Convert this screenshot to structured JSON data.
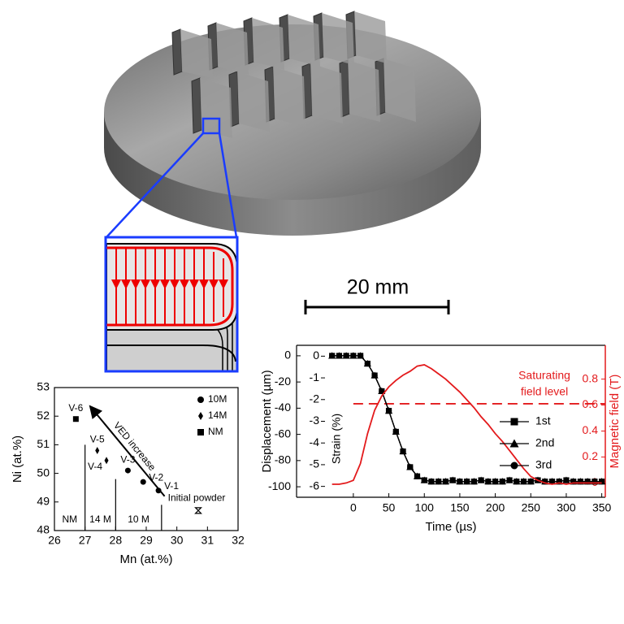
{
  "scale_bar": {
    "label": "20 mm"
  },
  "chart_data": [
    {
      "type": "scatter",
      "xlabel": "Mn (at.%)",
      "ylabel": "Ni (at.%)",
      "xlim": [
        26,
        32
      ],
      "ylim": [
        48,
        53
      ],
      "xticks": [
        26,
        27,
        28,
        29,
        30,
        31,
        32
      ],
      "yticks": [
        48,
        49,
        50,
        51,
        52,
        53
      ],
      "legend_position": "upper right",
      "series": [
        {
          "name": "10M",
          "marker": "circle",
          "color": "#000000",
          "x": [
            28.4,
            28.9,
            29.4
          ],
          "values": [
            50.1,
            49.7,
            49.4
          ],
          "xerr": [
            0.2,
            0.15,
            0.15
          ],
          "yerr": [
            0.1,
            0.1,
            0.1
          ],
          "point_labels": [
            "V-3",
            "V-2",
            "V-1"
          ],
          "label_side": [
            "above",
            "right",
            "right"
          ]
        },
        {
          "name": "14M",
          "marker": "diamond",
          "color": "#000000",
          "x": [
            27.4,
            27.7
          ],
          "values": [
            50.8,
            50.45
          ],
          "xerr": [
            0.2,
            0.2
          ],
          "yerr": [
            0.12,
            0.12
          ],
          "point_labels": [
            "V-5",
            "V-4"
          ],
          "label_side": [
            "above",
            "below-left"
          ]
        },
        {
          "name": "NM",
          "marker": "square",
          "color": "#000000",
          "x": [
            26.7
          ],
          "values": [
            51.9
          ],
          "xerr": [
            0.3
          ],
          "yerr": [
            0.15
          ],
          "point_labels": [
            "V-6"
          ],
          "label_side": [
            "above"
          ]
        }
      ],
      "reference_point": {
        "label": "Initial powder",
        "marker": "hourglass",
        "x": 30.7,
        "value": 48.7,
        "xerr": 0.35,
        "yerr": 0.08
      },
      "boundaries": [
        {
          "x": 27,
          "top": 51
        },
        {
          "x": 28,
          "top": 49.8
        },
        {
          "x": 29.5,
          "top": 48.9
        }
      ],
      "region_labels": [
        "NM",
        "14 M",
        "10 M"
      ],
      "arrow": {
        "label": "VED increase",
        "from": [
          29.6,
          49.2
        ],
        "to": [
          27.2,
          52.3
        ]
      }
    },
    {
      "type": "line",
      "xlabel": "Time (µs)",
      "ylabel": "Displacement (µm)",
      "y2label": "Magnetic field (T)",
      "y3label": "Strain (%)",
      "xlim": [
        -80,
        355
      ],
      "ylim": [
        -108,
        8
      ],
      "y2lim": [
        -0.11,
        1.06
      ],
      "y3lim": [
        -6.5,
        0.5
      ],
      "xticks": [
        0,
        50,
        100,
        150,
        200,
        250,
        300,
        350
      ],
      "yticks": [
        0,
        -20,
        -40,
        -60,
        -80,
        -100
      ],
      "y2ticks": [
        0,
        0.2,
        0.4,
        0.6,
        0.8
      ],
      "y3ticks": [
        0,
        -1,
        -2,
        -3,
        -4,
        -5,
        -6
      ],
      "y2color": "#e31a1c",
      "legend_position": "center right",
      "x": [
        -30,
        -20,
        -10,
        0,
        10,
        20,
        30,
        40,
        50,
        60,
        70,
        80,
        90,
        100,
        110,
        120,
        130,
        140,
        150,
        160,
        170,
        180,
        190,
        200,
        210,
        220,
        230,
        240,
        250,
        260,
        270,
        280,
        290,
        300,
        310,
        320,
        330,
        340,
        350
      ],
      "series": [
        {
          "name": "1st",
          "marker": "square",
          "color": "#000000",
          "values": [
            0,
            0,
            0,
            0,
            0,
            -6,
            -15,
            -27,
            -42,
            -58,
            -73,
            -85,
            -92,
            -95,
            -96,
            -96,
            -96,
            -95,
            -96,
            -96,
            -96,
            -95,
            -96,
            -96,
            -96,
            -95,
            -96,
            -96,
            -96,
            -95,
            -96,
            -96,
            -96,
            -95,
            -96,
            -96,
            -96,
            -96,
            -96
          ]
        },
        {
          "name": "2nd",
          "marker": "triangle",
          "color": "#000000",
          "values": [
            0,
            0,
            0,
            0,
            0,
            -6,
            -15,
            -27,
            -42,
            -58,
            -73,
            -85,
            -92,
            -95,
            -96,
            -96,
            -96,
            -95,
            -96,
            -96,
            -96,
            -95,
            -96,
            -96,
            -96,
            -95,
            -96,
            -96,
            -96,
            -95,
            -96,
            -96,
            -96,
            -95,
            -96,
            -96,
            -96,
            -96,
            -96
          ]
        },
        {
          "name": "3rd",
          "marker": "circle",
          "color": "#000000",
          "values": [
            0,
            0,
            0,
            0,
            0,
            -6,
            -15,
            -27,
            -42,
            -58,
            -73,
            -85,
            -92,
            -95,
            -96,
            -96,
            -96,
            -95,
            -96,
            -96,
            -96,
            -95,
            -96,
            -96,
            -96,
            -95,
            -96,
            -96,
            -96,
            -95,
            -96,
            -96,
            -96,
            -95,
            -96,
            -96,
            -96,
            -96,
            -96
          ]
        },
        {
          "axis": "y2",
          "color": "#e31a1c",
          "values": [
            -0.01,
            -0.01,
            0,
            0.02,
            0.15,
            0.38,
            0.56,
            0.67,
            0.74,
            0.79,
            0.83,
            0.86,
            0.9,
            0.91,
            0.88,
            0.84,
            0.8,
            0.75,
            0.7,
            0.64,
            0.58,
            0.51,
            0.45,
            0.38,
            0.32,
            0.25,
            0.18,
            0.11,
            0.05,
            0.02,
            0,
            -0.01,
            0,
            -0.01,
            0,
            0,
            0,
            0,
            0
          ]
        }
      ],
      "saturation": {
        "value": 0.61,
        "axis": "y2",
        "x_start": 0,
        "label": [
          "Saturating",
          "field level"
        ]
      }
    }
  ]
}
